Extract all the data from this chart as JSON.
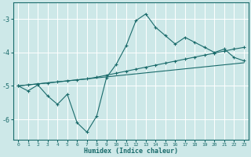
{
  "xlabel": "Humidex (Indice chaleur)",
  "bg_color": "#cde8e8",
  "grid_color": "#b8d8d8",
  "line_color": "#1a6b6b",
  "x_ticks": [
    0,
    1,
    2,
    3,
    4,
    5,
    6,
    7,
    8,
    9,
    10,
    11,
    12,
    13,
    14,
    15,
    16,
    17,
    18,
    19,
    20,
    21,
    22,
    23
  ],
  "ylim": [
    -6.6,
    -2.5
  ],
  "yticks": [
    -6,
    -5,
    -4,
    -3
  ],
  "xlim": [
    -0.5,
    23.5
  ],
  "line1_x": [
    0,
    1,
    2,
    3,
    4,
    5,
    6,
    7,
    8,
    9,
    10,
    11,
    12,
    13,
    14,
    15,
    16,
    17,
    18,
    19,
    20,
    21,
    22,
    23
  ],
  "line1_y": [
    -5.0,
    -5.15,
    -4.97,
    -5.3,
    -5.55,
    -5.25,
    -6.1,
    -6.38,
    -5.9,
    -4.75,
    -4.35,
    -3.8,
    -3.05,
    -2.85,
    -3.25,
    -3.5,
    -3.75,
    -3.55,
    -3.7,
    -3.85,
    -4.0,
    -3.9,
    -4.15,
    -4.25
  ],
  "line2_x": [
    0,
    1,
    2,
    3,
    4,
    5,
    6,
    7,
    8,
    9,
    10,
    11,
    12,
    13,
    14,
    15,
    16,
    17,
    18,
    19,
    20,
    21,
    22,
    23
  ],
  "line2_y": [
    -5.0,
    -4.97,
    -4.94,
    -4.91,
    -4.88,
    -4.85,
    -4.82,
    -4.79,
    -4.74,
    -4.68,
    -4.62,
    -4.56,
    -4.5,
    -4.44,
    -4.38,
    -4.32,
    -4.26,
    -4.2,
    -4.14,
    -4.08,
    -4.02,
    -3.96,
    -3.9,
    -3.85
  ],
  "line3_x": [
    0,
    1,
    2,
    3,
    4,
    5,
    6,
    7,
    8,
    9,
    10,
    11,
    12,
    13,
    14,
    15,
    16,
    17,
    18,
    19,
    20,
    21,
    22,
    23
  ],
  "line3_y": [
    -5.0,
    -4.97,
    -4.94,
    -4.91,
    -4.88,
    -4.85,
    -4.82,
    -4.79,
    -4.76,
    -4.73,
    -4.7,
    -4.67,
    -4.64,
    -4.61,
    -4.58,
    -4.55,
    -4.52,
    -4.49,
    -4.46,
    -4.43,
    -4.4,
    -4.37,
    -4.34,
    -4.31
  ]
}
